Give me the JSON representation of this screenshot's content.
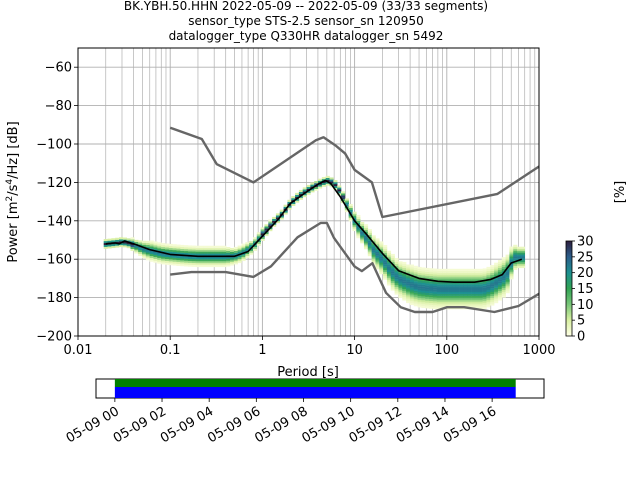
{
  "title_lines": [
    "BK.YBH.50.HHN   2022-05-09 -- 2022-05-09  (33/33 segments)",
    "sensor_type STS-2.5 sensor_sn 120950",
    "datalogger_type Q330HR datalogger_sn 5492"
  ],
  "chart_data": {
    "type": "heatmap",
    "xlabel": "Period [s]",
    "ylabel_main": "Power [m",
    "ylabel_sup1": "2",
    "ylabel_mid": "/s",
    "ylabel_sup2": "4",
    "ylabel_end": "/Hz] [dB]",
    "x_scale": "log",
    "xlim": [
      0.01,
      1000
    ],
    "ylim": [
      -200,
      -50
    ],
    "x_ticks": [
      {
        "value": 0.01,
        "label": "0.01"
      },
      {
        "value": 0.1,
        "label": "0.1"
      },
      {
        "value": 1,
        "label": "1"
      },
      {
        "value": 10,
        "label": "10"
      },
      {
        "value": 100,
        "label": "100"
      },
      {
        "value": 1000,
        "label": "1000"
      }
    ],
    "y_ticks": [
      {
        "value": -60,
        "label": "−60"
      },
      {
        "value": -80,
        "label": "−80"
      },
      {
        "value": -100,
        "label": "−100"
      },
      {
        "value": -120,
        "label": "−120"
      },
      {
        "value": -140,
        "label": "−140"
      },
      {
        "value": -160,
        "label": "−160"
      },
      {
        "value": -180,
        "label": "−180"
      },
      {
        "value": -200,
        "label": "−200"
      }
    ],
    "grid": true,
    "colorbar": {
      "label": "[%]",
      "min": 0,
      "max": 30,
      "ticks": [
        {
          "value": 0,
          "label": "0"
        },
        {
          "value": 5,
          "label": "5"
        },
        {
          "value": 10,
          "label": "10"
        },
        {
          "value": 15,
          "label": "15"
        },
        {
          "value": 20,
          "label": "20"
        },
        {
          "value": 25,
          "label": "25"
        },
        {
          "value": 30,
          "label": "30"
        }
      ],
      "colors": [
        "#ffffe5",
        "#d9f0a3",
        "#78c679",
        "#31a354",
        "#1d9191",
        "#2c5d8a",
        "#2d1e3e"
      ]
    },
    "series": [
      {
        "role": "nhnm",
        "color": "#666666",
        "x": [
          0.1,
          0.22,
          0.32,
          0.8,
          3.8,
          4.6,
          6.3,
          7.9,
          10,
          15.4,
          20,
          354.8,
          10000
        ],
        "y": [
          -91.5,
          -97.4,
          -110.5,
          -120,
          -98,
          -96.5,
          -101,
          -105,
          -113.5,
          -120,
          -138,
          -126,
          -80
        ]
      },
      {
        "role": "nlnm",
        "color": "#666666",
        "x": [
          0.1,
          0.17,
          0.4,
          0.8,
          1.24,
          2.4,
          4.3,
          5,
          6,
          10,
          12,
          15.6,
          21.9,
          31.6,
          45,
          70,
          101,
          154,
          328,
          600,
          1000
        ],
        "y": [
          -168,
          -166.7,
          -166.7,
          -169.2,
          -163.7,
          -148.6,
          -141.1,
          -141.1,
          -149,
          -163.8,
          -166.2,
          -162.1,
          -177.5,
          -185,
          -187.5,
          -187.5,
          -185,
          -185,
          -187.5,
          -184.4,
          -178
        ]
      },
      {
        "role": "mode",
        "color": "#000000",
        "x": [
          0.02,
          0.025,
          0.028,
          0.032,
          0.04,
          0.06,
          0.1,
          0.2,
          0.3,
          0.5,
          0.7,
          1,
          1.5,
          2,
          3,
          4,
          4.8,
          5.5,
          7,
          10,
          14,
          20,
          30,
          50,
          80,
          120,
          200,
          300,
          400,
          500,
          650
        ],
        "y": [
          -152,
          -151.5,
          -152,
          -150.5,
          -152,
          -155,
          -157.5,
          -158.5,
          -158.5,
          -158.5,
          -156,
          -148,
          -139,
          -131,
          -125,
          -121,
          -119,
          -120.5,
          -127.5,
          -140,
          -148,
          -157,
          -166,
          -170,
          -171.5,
          -172,
          -172,
          -170.5,
          -168,
          -162,
          -160
        ]
      }
    ],
    "density": {
      "x": [
        0.02,
        0.025,
        0.03,
        0.035,
        0.04,
        0.05,
        0.06,
        0.08,
        0.1,
        0.13,
        0.16,
        0.2,
        0.25,
        0.3,
        0.4,
        0.5,
        0.6,
        0.8,
        1,
        1.3,
        1.6,
        2,
        2.5,
        3,
        3.5,
        4,
        4.5,
        5,
        5.5,
        6,
        7,
        8,
        9,
        10,
        12,
        14,
        16,
        20,
        25,
        30,
        40,
        50,
        60,
        80,
        100,
        130,
        160,
        200,
        250,
        300,
        350,
        400,
        450,
        500,
        550,
        600,
        650
      ],
      "y": [
        -152,
        -151.5,
        -151,
        -151.5,
        -152.5,
        -154.5,
        -155.5,
        -157,
        -157.5,
        -158,
        -158.3,
        -158.5,
        -158.5,
        -158.5,
        -158.5,
        -158.3,
        -157,
        -153,
        -147,
        -141,
        -137,
        -131,
        -127,
        -124.5,
        -122.5,
        -121,
        -120,
        -119,
        -119.5,
        -120.5,
        -125,
        -130.5,
        -135.5,
        -140,
        -146,
        -150,
        -155,
        -160,
        -166,
        -170,
        -173,
        -174.5,
        -175,
        -175.5,
        -175.5,
        -175.5,
        -175.5,
        -175.5,
        -175.5,
        -174,
        -172,
        -170,
        -168,
        -162,
        -159,
        -159,
        -159
      ],
      "spread": [
        3,
        3,
        3,
        3,
        4,
        5,
        6,
        6,
        6,
        6,
        6,
        6,
        6,
        6,
        6,
        5,
        5,
        4,
        4,
        3,
        3,
        3,
        3,
        3,
        3,
        2,
        2,
        2,
        2,
        3,
        3,
        4,
        5,
        6,
        7,
        8,
        9,
        10,
        11,
        11,
        12,
        12,
        12,
        12,
        12,
        12,
        12,
        12,
        12,
        12,
        12,
        12,
        12,
        10,
        8,
        7,
        7
      ]
    }
  },
  "timeline": {
    "ticks": [
      "05-09 00",
      "05-09 02",
      "05-09 04",
      "05-09 06",
      "05-09 08",
      "05-09 10",
      "05-09 12",
      "05-09 14",
      "05-09 16"
    ],
    "hours_range": [
      -0.8,
      18.2
    ],
    "green_band": [
      0,
      17
    ],
    "blue_band": [
      0,
      17
    ],
    "green_color": "#008000",
    "blue_color": "#0000ff"
  }
}
